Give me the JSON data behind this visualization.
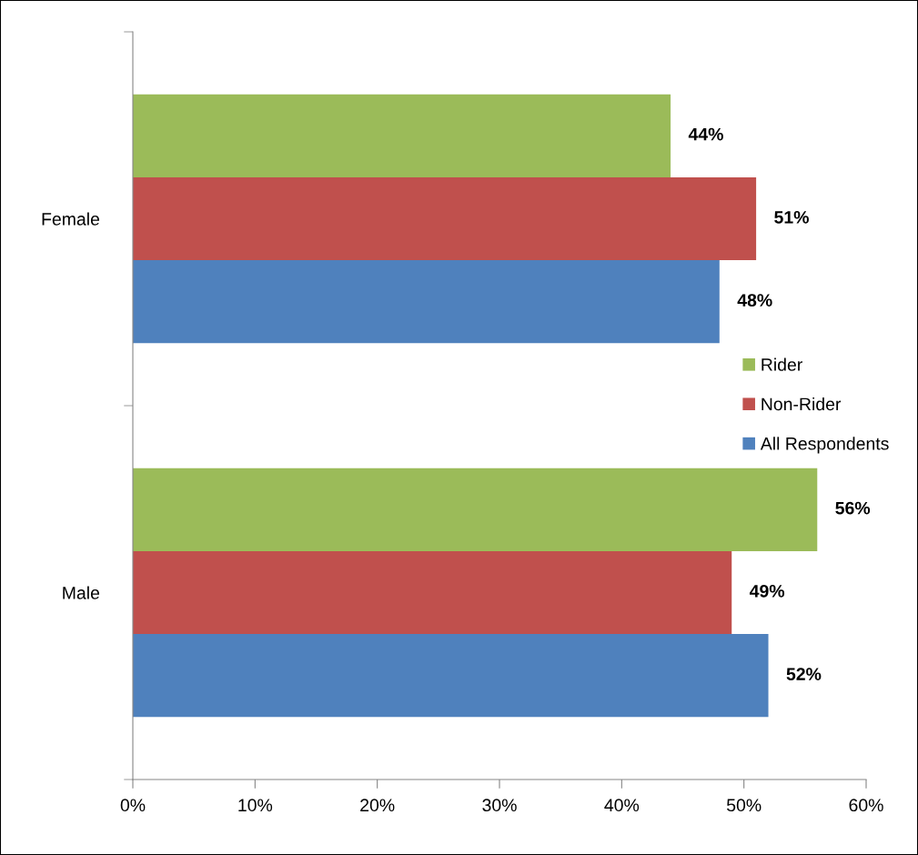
{
  "chart_data": {
    "type": "bar",
    "orientation": "horizontal",
    "categories": [
      "Female",
      "Male"
    ],
    "series": [
      {
        "name": "Rider",
        "color": "#9bbb59",
        "values": [
          44,
          56
        ],
        "value_labels": [
          "44%",
          "56%"
        ]
      },
      {
        "name": "Non-Rider",
        "color": "#c0504d",
        "values": [
          51,
          49
        ],
        "value_labels": [
          "51%",
          "49%"
        ]
      },
      {
        "name": "All Respondents",
        "color": "#4f81bd",
        "values": [
          48,
          52
        ],
        "value_labels": [
          "48%",
          "52%"
        ]
      }
    ],
    "xlim": [
      0,
      60
    ],
    "xticks": [
      {
        "value": 0,
        "label": "0%"
      },
      {
        "value": 10,
        "label": "10%"
      },
      {
        "value": 20,
        "label": "20%"
      },
      {
        "value": 30,
        "label": "30%"
      },
      {
        "value": 40,
        "label": "40%"
      },
      {
        "value": 50,
        "label": "50%"
      },
      {
        "value": 60,
        "label": "60%"
      }
    ],
    "grid": false,
    "legend": "right"
  }
}
